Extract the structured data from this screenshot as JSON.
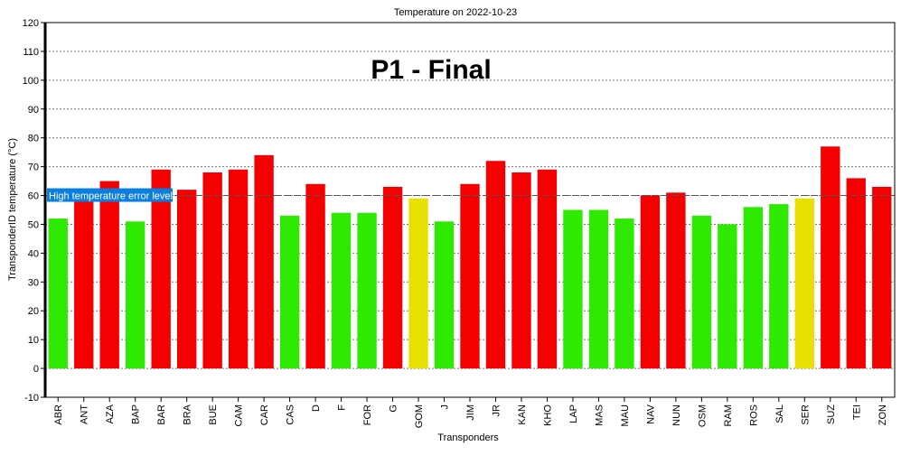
{
  "chart_data": {
    "type": "bar",
    "title": "Temperature on 2022-10-23",
    "overlay_title": "P1 - Final",
    "xlabel": "Transponders",
    "ylabel": "TransponderID temperature (°C)",
    "ylim": [
      -10,
      120
    ],
    "yticks": [
      -10,
      0,
      10,
      20,
      30,
      40,
      50,
      60,
      70,
      80,
      90,
      100,
      110,
      120
    ],
    "grid": true,
    "threshold": {
      "value": 60,
      "label": "High temperature error level",
      "color": "#0a7fe0"
    },
    "colors": {
      "ok": "#2eea00",
      "warn": "#e8e000",
      "error": "#f50000"
    },
    "categories": [
      "ABR",
      "ANT",
      "AZA",
      "BAP",
      "BAR",
      "BRA",
      "BUE",
      "CAM",
      "CAR",
      "CAS",
      "D",
      "F",
      "FOR",
      "G",
      "GOM",
      "J",
      "JIM",
      "JR",
      "KAN",
      "KHO",
      "LAP",
      "MAS",
      "MAU",
      "NAV",
      "NUN",
      "OSM",
      "RAM",
      "ROS",
      "SAL",
      "SER",
      "SUZ",
      "TEI",
      "ZON"
    ],
    "values": [
      52,
      61,
      65,
      51,
      69,
      62,
      68,
      69,
      74,
      53,
      64,
      54,
      54,
      63,
      59,
      51,
      64,
      72,
      68,
      69,
      55,
      55,
      52,
      60,
      61,
      53,
      50,
      56,
      57,
      59,
      77,
      66,
      63
    ],
    "status": [
      "ok",
      "error",
      "error",
      "ok",
      "error",
      "error",
      "error",
      "error",
      "error",
      "ok",
      "error",
      "ok",
      "ok",
      "error",
      "warn",
      "ok",
      "error",
      "error",
      "error",
      "error",
      "ok",
      "ok",
      "ok",
      "error",
      "error",
      "ok",
      "ok",
      "ok",
      "ok",
      "warn",
      "error",
      "error",
      "error"
    ]
  }
}
